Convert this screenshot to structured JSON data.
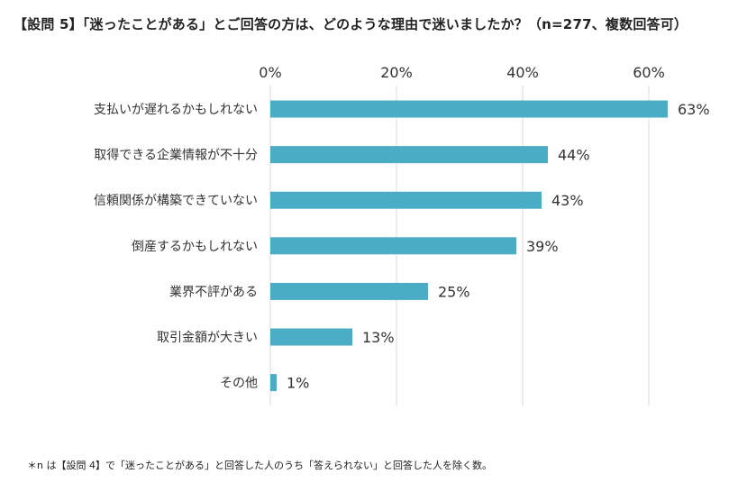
{
  "title": "【設問 5】「迷ったことがある」とご回答の方は、どのような理由で迷いましたか？（n=277、複数回答可）",
  "footnote": "＊n は【設問 4】で「迷ったことがある」と回答した人のうち「答えられない」と回答した人を除く数。",
  "colors": {
    "bar": "#4bacc6",
    "grid": "#d9d9d9",
    "text": "#333333"
  },
  "chart_data": {
    "type": "bar",
    "orientation": "horizontal",
    "categories": [
      "支払いが遅れるかもしれない",
      "取得できる企業情報が不十分",
      "信頼関係が構築できていない",
      "倒産するかもしれない",
      "業界不評がある",
      "取引金額が大きい",
      "その他"
    ],
    "values": [
      63,
      44,
      43,
      39,
      25,
      13,
      1
    ],
    "value_labels": [
      "63%",
      "44%",
      "43%",
      "39%",
      "25%",
      "13%",
      "1%"
    ],
    "ticks": [
      0,
      20,
      40,
      60
    ],
    "tick_labels": [
      "0%",
      "20%",
      "40%",
      "60%"
    ],
    "xlim": [
      0,
      63
    ],
    "axis_position": "top",
    "grid": true,
    "unit": "%"
  }
}
